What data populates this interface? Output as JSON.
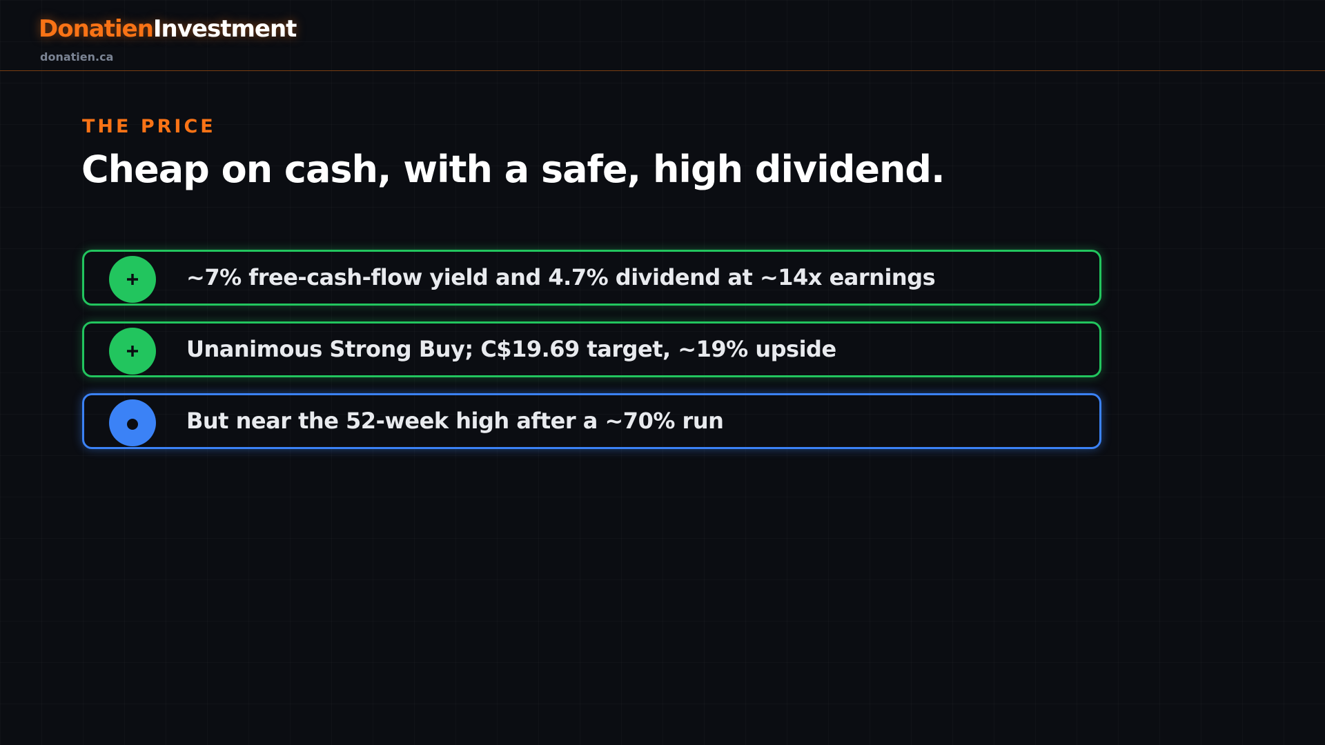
{
  "header": {
    "brand_primary": "Donatien",
    "brand_secondary": "Investment",
    "url": "donatien.ca"
  },
  "slide": {
    "eyebrow": "THE PRICE",
    "title": "Cheap on cash, with a safe, high dividend.",
    "items": [
      {
        "text": "~7% free-cash-flow yield and 4.7% dividend at ~14x earnings"
      },
      {
        "text": "Unanimous Strong Buy; C$19.69 target, ~19% upside"
      },
      {
        "text": "But near the 52-week high after a ~70% run"
      }
    ]
  }
}
